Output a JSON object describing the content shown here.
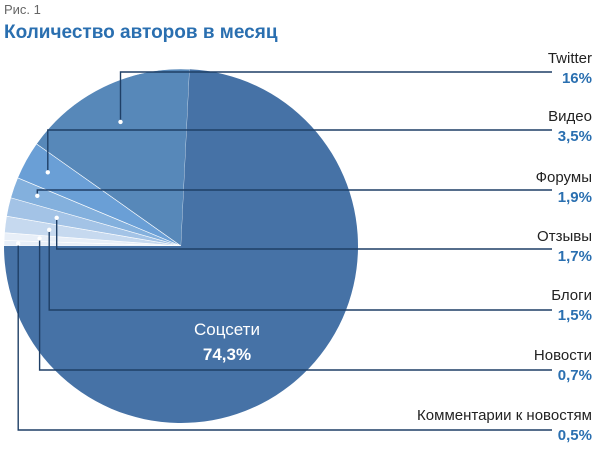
{
  "figure_label": "Рис. 1",
  "colors": {
    "title": "#2a6fb0",
    "value": "#2a6fb0",
    "leader": "#1f3f66",
    "slices": [
      "#4672a6",
      "#5788b9",
      "#6a9fd6",
      "#83b0dd",
      "#a3c3e6",
      "#c6d9ef",
      "#e8eff8"
    ]
  },
  "chart_data": {
    "type": "pie",
    "title": "Количество авторов в месяц",
    "start_angle_deg": 180,
    "direction": "clockwise",
    "slices": [
      {
        "label": "Соцсети",
        "display": "74,3%",
        "value": 74.3
      },
      {
        "label": "Twitter",
        "display": "16%",
        "value": 16
      },
      {
        "label": "Видео",
        "display": "3,5%",
        "value": 3.5
      },
      {
        "label": "Форумы",
        "display": "1,9%",
        "value": 1.9
      },
      {
        "label": "Отзывы",
        "display": "1,7%",
        "value": 1.7
      },
      {
        "label": "Блоги",
        "display": "1,5%",
        "value": 1.5
      },
      {
        "label": "Новости",
        "display": "0,7%",
        "value": 0.7
      },
      {
        "label": "Комментарии к новостям",
        "display": "0,5%",
        "value": 0.5
      }
    ],
    "legend": "right, with leader lines"
  }
}
